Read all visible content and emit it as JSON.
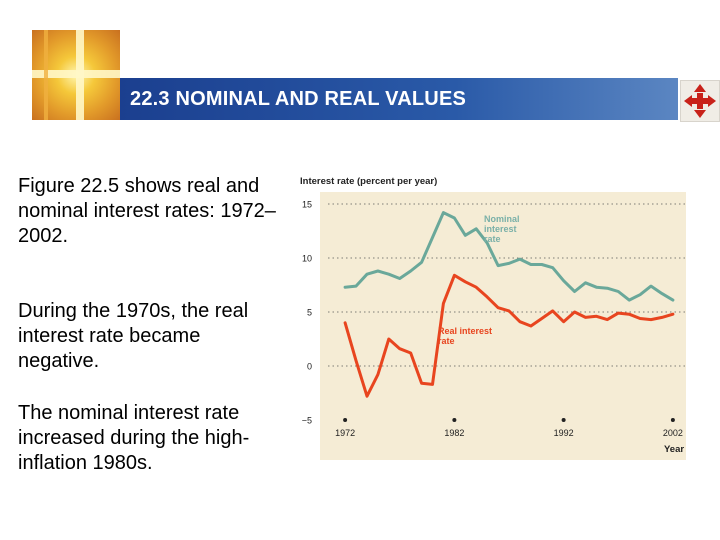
{
  "header": {
    "title": "22.3 NOMINAL AND REAL VALUES"
  },
  "body": {
    "paragraphs": [
      "Figure 22.5 shows real and nominal interest rates: 1972–2002.",
      "During the 1970s, the real interest rate became negative.",
      "The nominal interest rate increased during the high-inflation 1980s."
    ]
  },
  "colors": {
    "title_bar": "#1b3f8f",
    "nominal": "#6aa89a",
    "real": "#e8451f",
    "plot_bg": "#f5ecd5",
    "label_nominal": "#7ab0a8",
    "label_real": "#e8451f"
  },
  "icons": {
    "logo": "light-cross-logo",
    "nav": "four-arrow-nav-icon"
  },
  "chart_data": {
    "type": "line",
    "ylabel": "Interest rate (percent per year)",
    "xlabel": "Year",
    "ylim": [
      -5,
      15
    ],
    "xlim": [
      1972,
      2003
    ],
    "yticks": [
      15,
      10,
      5,
      0,
      -5
    ],
    "xticks": [
      1972,
      1982,
      1992,
      2002
    ],
    "series": [
      {
        "name": "Nominal interest rate",
        "x": [
          1972,
          1973,
          1974,
          1975,
          1976,
          1977,
          1978,
          1979,
          1980,
          1981,
          1982,
          1983,
          1984,
          1985,
          1986,
          1987,
          1988,
          1989,
          1990,
          1991,
          1992,
          1993,
          1994,
          1995,
          1996,
          1997,
          1998,
          1999,
          2000,
          2001,
          2002
        ],
        "values": [
          7.3,
          7.4,
          8.5,
          8.8,
          8.5,
          8.1,
          8.8,
          9.6,
          11.9,
          14.2,
          13.7,
          12.1,
          12.7,
          11.4,
          9.3,
          9.5,
          9.9,
          9.4,
          9.4,
          9.1,
          7.9,
          6.9,
          7.7,
          7.3,
          7.2,
          6.9,
          6.1,
          6.6,
          7.4,
          6.7,
          6.1
        ]
      },
      {
        "name": "Real interest rate",
        "x": [
          1972,
          1973,
          1974,
          1975,
          1976,
          1977,
          1978,
          1979,
          1980,
          1981,
          1982,
          1983,
          1984,
          1985,
          1986,
          1987,
          1988,
          1989,
          1990,
          1991,
          1992,
          1993,
          1994,
          1995,
          1996,
          1997,
          1998,
          1999,
          2000,
          2001,
          2002
        ],
        "values": [
          4.0,
          0.5,
          -2.8,
          -0.8,
          2.5,
          1.6,
          1.2,
          -1.6,
          -1.7,
          5.8,
          8.4,
          7.8,
          7.3,
          6.4,
          5.4,
          5.1,
          4.1,
          3.7,
          4.4,
          5.1,
          4.1,
          5.0,
          4.5,
          4.6,
          4.3,
          4.9,
          4.8,
          4.4,
          4.3,
          4.5,
          4.8
        ]
      }
    ],
    "annotations": [
      {
        "text": "Nominal interest rate",
        "lines": [
          "Nominal",
          "interest",
          "rate"
        ],
        "series": "Nominal interest rate"
      },
      {
        "text": "Real interest rate",
        "lines": [
          "Real interest",
          "rate"
        ],
        "series": "Real interest rate"
      }
    ]
  }
}
